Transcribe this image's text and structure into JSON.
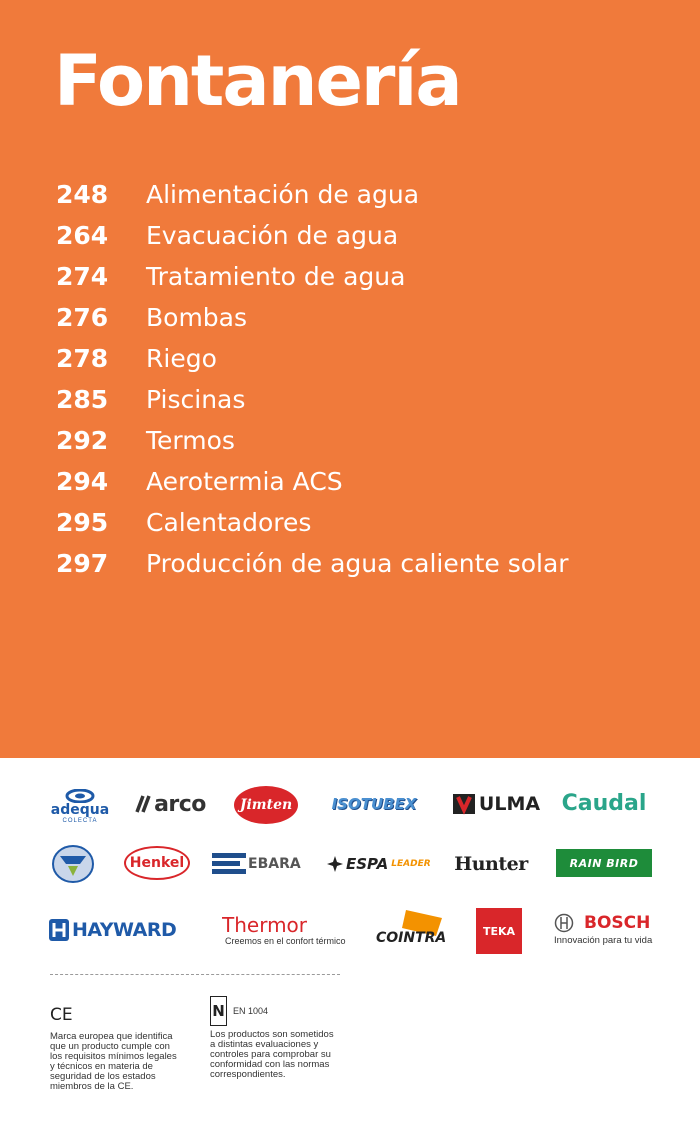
{
  "header": {
    "title": "Fontanería"
  },
  "toc": [
    {
      "page": "248",
      "label": "Alimentación de agua"
    },
    {
      "page": "264",
      "label": "Evacuación de agua"
    },
    {
      "page": "274",
      "label": "Tratamiento de agua"
    },
    {
      "page": "276",
      "label": "Bombas"
    },
    {
      "page": "278",
      "label": "Riego"
    },
    {
      "page": "285",
      "label": "Piscinas"
    },
    {
      "page": "292",
      "label": "Termos"
    },
    {
      "page": "294",
      "label": "Aerotermia ACS"
    },
    {
      "page": "295",
      "label": "Calentadores"
    },
    {
      "page": "297",
      "label": "Producción de agua caliente solar"
    }
  ],
  "brands": {
    "adequa": {
      "name": "adequa",
      "sub": "COLECTA"
    },
    "arco": {
      "name": "arco"
    },
    "jimten": {
      "name": "Jimten"
    },
    "isoturex": {
      "name": "ISOTUBEX"
    },
    "ulma": {
      "name": "ULMA"
    },
    "caudal": {
      "name": "Caudal"
    },
    "henkel": {
      "name": "Henkel"
    },
    "ebara": {
      "name": "EBARA"
    },
    "espa": {
      "name": "ESPA",
      "sub": "LEADER"
    },
    "hunter": {
      "name": "Hunter"
    },
    "rainbird": {
      "name": "RAIN BIRD"
    },
    "hayward": {
      "name": "HAYWARD"
    },
    "thermor": {
      "name": "Thermor",
      "tagline": "Creemos en el confort térmico"
    },
    "cointra": {
      "name": "COINTRA"
    },
    "teka": {
      "name": "TEKA"
    },
    "bosch": {
      "name": "BOSCH",
      "tagline": "Innovación para tu vida"
    }
  },
  "colors": {
    "accent": "#f07a3b",
    "adequa": "#1e5aa8",
    "jimten": "#d9262a",
    "caudal": "#2aa58a",
    "henkel": "#d9262a",
    "ebara": "#1f4e8c",
    "rainbird": "#1e8c3a",
    "hayward": "#1f5aa8",
    "thermor": "#d9262a",
    "cointra": "#f39200",
    "teka": "#d9262a",
    "bosch": "#d9262a"
  },
  "certifications": {
    "ce": {
      "mark": "CE",
      "text": "Marca europea que identifica\nque un producto cumple con\nlos requisitos mínimos legales\ny técnicos en materia de\nseguridad de los estados\nmiembros de la CE."
    },
    "aenor": {
      "mark": "N",
      "code": "EN 1004",
      "text": "Los productos son sometidos\na distintas evaluaciones y\ncontroles para comprobar su\nconformidad con las normas\ncorrespondientes."
    }
  }
}
